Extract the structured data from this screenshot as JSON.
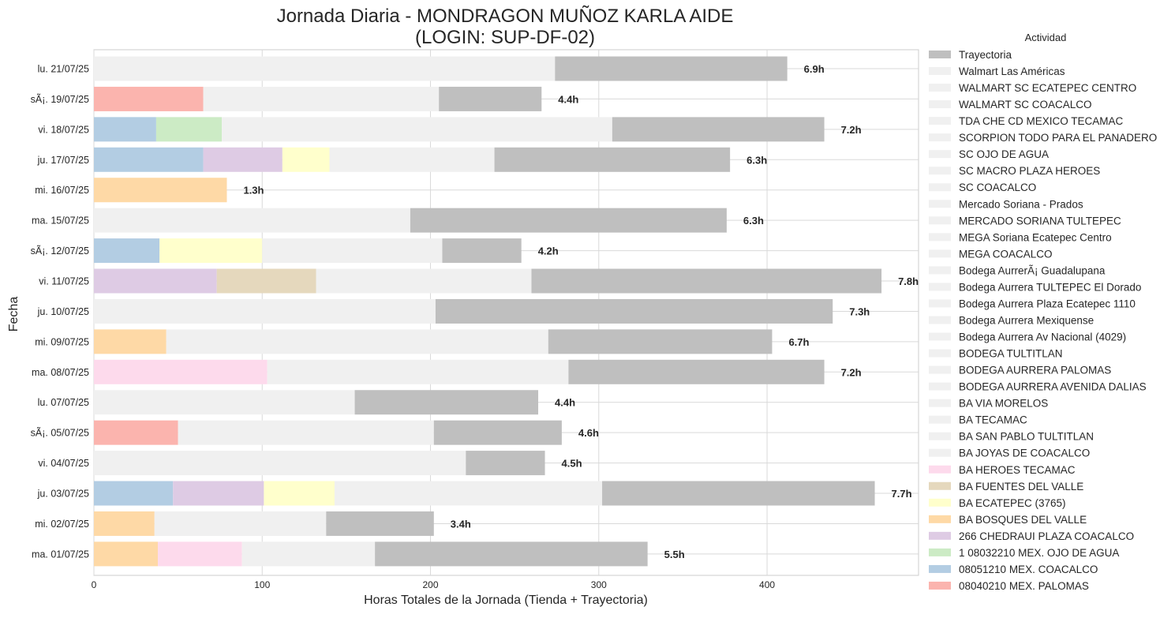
{
  "chart_data": {
    "type": "bar",
    "orientation": "horizontal",
    "stacked": true,
    "title": "Jornada Diaria - MONDRAGON MUÑOZ KARLA AIDE",
    "subtitle": "(LOGIN: SUP-DF-02)",
    "xlabel": "Horas Totales de la Jornada (Tienda + Trayectoria)",
    "ylabel": "Fecha",
    "xlim": [
      0,
      490
    ],
    "xticks": [
      0,
      100,
      200,
      300,
      400
    ],
    "grid": true,
    "legend": {
      "title": "Actividad",
      "placement": "right-outside",
      "items": [
        {
          "label": "Trayectoria",
          "color": "#bfbfbf"
        },
        {
          "label": "Walmart Las Américas",
          "color": "#f0f0f0"
        },
        {
          "label": "WALMART SC ECATEPEC CENTRO",
          "color": "#f0f0f0"
        },
        {
          "label": "WALMART SC COACALCO",
          "color": "#f0f0f0"
        },
        {
          "label": "TDA CHE CD MEXICO TECAMAC",
          "color": "#f0f0f0"
        },
        {
          "label": "SCORPION TODO PARA EL PANADERO",
          "color": "#f0f0f0"
        },
        {
          "label": "SC OJO DE AGUA",
          "color": "#f0f0f0"
        },
        {
          "label": "SC MACRO PLAZA HEROES",
          "color": "#f0f0f0"
        },
        {
          "label": "SC COACALCO",
          "color": "#f0f0f0"
        },
        {
          "label": "Mercado Soriana - Prados",
          "color": "#f0f0f0"
        },
        {
          "label": "MERCADO SORIANA TULTEPEC",
          "color": "#f0f0f0"
        },
        {
          "label": "MEGA Soriana Ecatepec Centro",
          "color": "#f0f0f0"
        },
        {
          "label": "MEGA COACALCO",
          "color": "#f0f0f0"
        },
        {
          "label": "Bodega AurrerÃ¡ Guadalupana",
          "color": "#f0f0f0"
        },
        {
          "label": "Bodega Aurrera TULTEPEC El Dorado",
          "color": "#f0f0f0"
        },
        {
          "label": "Bodega Aurrera Plaza Ecatepec 1110",
          "color": "#f0f0f0"
        },
        {
          "label": "Bodega Aurrera Mexiquense",
          "color": "#f0f0f0"
        },
        {
          "label": "Bodega Aurrera Av Nacional (4029)",
          "color": "#f0f0f0"
        },
        {
          "label": "BODEGA TULTITLAN",
          "color": "#f0f0f0"
        },
        {
          "label": "BODEGA AURRERA PALOMAS",
          "color": "#f0f0f0"
        },
        {
          "label": "BODEGA AURRERA AVENIDA DALIAS",
          "color": "#f0f0f0"
        },
        {
          "label": "BA VIA MORELOS",
          "color": "#f0f0f0"
        },
        {
          "label": "BA TECAMAC",
          "color": "#f0f0f0"
        },
        {
          "label": "BA SAN PABLO TULTITLAN",
          "color": "#f0f0f0"
        },
        {
          "label": "BA JOYAS DE COACALCO",
          "color": "#f0f0f0"
        },
        {
          "label": "BA HEROES TECAMAC",
          "color": "#fddaec"
        },
        {
          "label": "BA FUENTES DEL VALLE",
          "color": "#e5d8bd"
        },
        {
          "label": "BA ECATEPEC  (3765)",
          "color": "#ffffcc"
        },
        {
          "label": "BA BOSQUES DEL VALLE",
          "color": "#fed9a6"
        },
        {
          "label": "266 CHEDRAUI PLAZA COACALCO",
          "color": "#decbe4"
        },
        {
          "label": "1 08032210 MEX. OJO DE AGUA",
          "color": "#ccebc5"
        },
        {
          "label": "08051210 MEX. COACALCO",
          "color": "#b3cde3"
        },
        {
          "label": "08040210 MEX. PALOMAS",
          "color": "#fbb4ae"
        }
      ]
    },
    "categories": [
      "lu. 21/07/25",
      "sÃ¡. 19/07/25",
      "vi. 18/07/25",
      "ju. 17/07/25",
      "mi. 16/07/25",
      "ma. 15/07/25",
      "sÃ¡. 12/07/25",
      "vi. 11/07/25",
      "ju. 10/07/25",
      "mi. 09/07/25",
      "ma. 08/07/25",
      "lu. 07/07/25",
      "sÃ¡. 05/07/25",
      "vi. 04/07/25",
      "ju. 03/07/25",
      "mi. 02/07/25",
      "ma. 01/07/25"
    ],
    "rows": [
      {
        "segments": [
          {
            "activity": "Walmart Las Américas",
            "value": 274,
            "color": "#f0f0f0"
          },
          {
            "activity": "Trayectoria",
            "value": 138,
            "color": "#bfbfbf"
          }
        ],
        "total_label": "6.9h"
      },
      {
        "segments": [
          {
            "activity": "08040210 MEX. PALOMAS",
            "value": 65,
            "color": "#fbb4ae"
          },
          {
            "activity": "Walmart Las Américas",
            "value": 140,
            "color": "#f0f0f0"
          },
          {
            "activity": "Trayectoria",
            "value": 61,
            "color": "#bfbfbf"
          }
        ],
        "total_label": "4.4h"
      },
      {
        "segments": [
          {
            "activity": "08051210 MEX. COACALCO",
            "value": 37,
            "color": "#b3cde3"
          },
          {
            "activity": "1 08032210 MEX. OJO DE AGUA",
            "value": 39,
            "color": "#ccebc5"
          },
          {
            "activity": "Walmart Las Américas",
            "value": 232,
            "color": "#f0f0f0"
          },
          {
            "activity": "Trayectoria",
            "value": 126,
            "color": "#bfbfbf"
          }
        ],
        "total_label": "7.2h"
      },
      {
        "segments": [
          {
            "activity": "08051210 MEX. COACALCO",
            "value": 65,
            "color": "#b3cde3"
          },
          {
            "activity": "266 CHEDRAUI PLAZA COACALCO",
            "value": 47,
            "color": "#decbe4"
          },
          {
            "activity": "BA ECATEPEC  (3765)",
            "value": 28,
            "color": "#ffffcc"
          },
          {
            "activity": "Walmart Las Américas",
            "value": 98,
            "color": "#f0f0f0"
          },
          {
            "activity": "Trayectoria",
            "value": 140,
            "color": "#bfbfbf"
          }
        ],
        "total_label": "6.3h"
      },
      {
        "segments": [
          {
            "activity": "BA BOSQUES DEL VALLE",
            "value": 79,
            "color": "#fed9a6"
          }
        ],
        "total_label": "1.3h"
      },
      {
        "segments": [
          {
            "activity": "Walmart Las Américas",
            "value": 188,
            "color": "#f0f0f0"
          },
          {
            "activity": "Trayectoria",
            "value": 188,
            "color": "#bfbfbf"
          }
        ],
        "total_label": "6.3h"
      },
      {
        "segments": [
          {
            "activity": "08051210 MEX. COACALCO",
            "value": 39,
            "color": "#b3cde3"
          },
          {
            "activity": "BA ECATEPEC  (3765)",
            "value": 61,
            "color": "#ffffcc"
          },
          {
            "activity": "Walmart Las Américas",
            "value": 107,
            "color": "#f0f0f0"
          },
          {
            "activity": "Trayectoria",
            "value": 47,
            "color": "#bfbfbf"
          }
        ],
        "total_label": "4.2h"
      },
      {
        "segments": [
          {
            "activity": "266 CHEDRAUI PLAZA COACALCO",
            "value": 73,
            "color": "#decbe4"
          },
          {
            "activity": "BA FUENTES DEL VALLE",
            "value": 59,
            "color": "#e5d8bd"
          },
          {
            "activity": "Walmart Las Américas",
            "value": 128,
            "color": "#f0f0f0"
          },
          {
            "activity": "Trayectoria",
            "value": 208,
            "color": "#bfbfbf"
          }
        ],
        "total_label": "7.8h"
      },
      {
        "segments": [
          {
            "activity": "Walmart Las Américas",
            "value": 203,
            "color": "#f0f0f0"
          },
          {
            "activity": "Trayectoria",
            "value": 236,
            "color": "#bfbfbf"
          }
        ],
        "total_label": "7.3h"
      },
      {
        "segments": [
          {
            "activity": "BA BOSQUES DEL VALLE",
            "value": 43,
            "color": "#fed9a6"
          },
          {
            "activity": "Walmart Las Américas",
            "value": 227,
            "color": "#f0f0f0"
          },
          {
            "activity": "Trayectoria",
            "value": 133,
            "color": "#bfbfbf"
          }
        ],
        "total_label": "6.7h"
      },
      {
        "segments": [
          {
            "activity": "BA HEROES TECAMAC",
            "value": 103,
            "color": "#fddaec"
          },
          {
            "activity": "Walmart Las Américas",
            "value": 179,
            "color": "#f0f0f0"
          },
          {
            "activity": "Trayectoria",
            "value": 152,
            "color": "#bfbfbf"
          }
        ],
        "total_label": "7.2h"
      },
      {
        "segments": [
          {
            "activity": "Walmart Las Américas",
            "value": 155,
            "color": "#f0f0f0"
          },
          {
            "activity": "Trayectoria",
            "value": 109,
            "color": "#bfbfbf"
          }
        ],
        "total_label": "4.4h"
      },
      {
        "segments": [
          {
            "activity": "08040210 MEX. PALOMAS",
            "value": 50,
            "color": "#fbb4ae"
          },
          {
            "activity": "Walmart Las Américas",
            "value": 152,
            "color": "#f0f0f0"
          },
          {
            "activity": "Trayectoria",
            "value": 76,
            "color": "#bfbfbf"
          }
        ],
        "total_label": "4.6h"
      },
      {
        "segments": [
          {
            "activity": "Walmart Las Américas",
            "value": 221,
            "color": "#f0f0f0"
          },
          {
            "activity": "Trayectoria",
            "value": 47,
            "color": "#bfbfbf"
          }
        ],
        "total_label": "4.5h"
      },
      {
        "segments": [
          {
            "activity": "08051210 MEX. COACALCO",
            "value": 47,
            "color": "#b3cde3"
          },
          {
            "activity": "266 CHEDRAUI PLAZA COACALCO",
            "value": 54,
            "color": "#decbe4"
          },
          {
            "activity": "BA ECATEPEC  (3765)",
            "value": 42,
            "color": "#ffffcc"
          },
          {
            "activity": "Walmart Las Américas",
            "value": 159,
            "color": "#f0f0f0"
          },
          {
            "activity": "Trayectoria",
            "value": 162,
            "color": "#bfbfbf"
          }
        ],
        "total_label": "7.7h"
      },
      {
        "segments": [
          {
            "activity": "BA BOSQUES DEL VALLE",
            "value": 36,
            "color": "#fed9a6"
          },
          {
            "activity": "Walmart Las Américas",
            "value": 102,
            "color": "#f0f0f0"
          },
          {
            "activity": "Trayectoria",
            "value": 64,
            "color": "#bfbfbf"
          }
        ],
        "total_label": "3.4h"
      },
      {
        "segments": [
          {
            "activity": "BA BOSQUES DEL VALLE",
            "value": 38,
            "color": "#fed9a6"
          },
          {
            "activity": "BA HEROES TECAMAC",
            "value": 50,
            "color": "#fddaec"
          },
          {
            "activity": "Walmart Las Américas",
            "value": 79,
            "color": "#f0f0f0"
          },
          {
            "activity": "Trayectoria",
            "value": 162,
            "color": "#bfbfbf"
          }
        ],
        "total_label": "5.5h"
      }
    ]
  }
}
